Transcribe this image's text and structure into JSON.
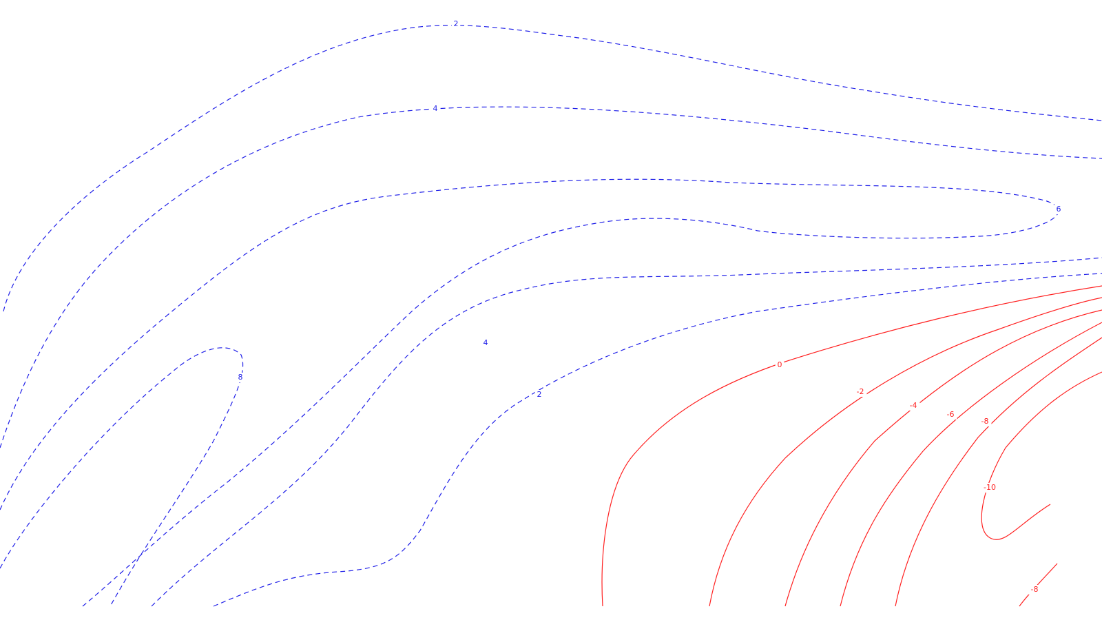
{
  "chart_data": {
    "type": "contour",
    "series": [
      {
        "name": "2",
        "value": 2,
        "style": "dashed",
        "color": "#2020e8"
      },
      {
        "name": "4",
        "value": 4,
        "style": "dashed",
        "color": "#2020e8"
      },
      {
        "name": "6",
        "value": 6,
        "style": "dashed",
        "color": "#2020e8"
      },
      {
        "name": "8",
        "value": 8,
        "style": "dashed",
        "color": "#2020e8"
      },
      {
        "name": "0",
        "value": 0,
        "style": "solid",
        "color": "#ff2020"
      },
      {
        "name": "-2",
        "value": -2,
        "style": "solid",
        "color": "#ff2020"
      },
      {
        "name": "-4",
        "value": -4,
        "style": "solid",
        "color": "#ff2020"
      },
      {
        "name": "-6",
        "value": -6,
        "style": "solid",
        "color": "#ff2020"
      },
      {
        "name": "-8",
        "value": -8,
        "style": "solid",
        "color": "#ff2020"
      },
      {
        "name": "-10",
        "value": -10,
        "style": "solid",
        "color": "#ff2020"
      }
    ],
    "labels": [
      "2",
      "4",
      "6",
      "8",
      "4",
      "2",
      "0",
      "-2",
      "-4",
      "-6",
      "-8",
      "-10",
      "-8"
    ],
    "title": "",
    "xlabel": "",
    "ylabel": "",
    "axes": false,
    "grid": false,
    "legend": false
  }
}
